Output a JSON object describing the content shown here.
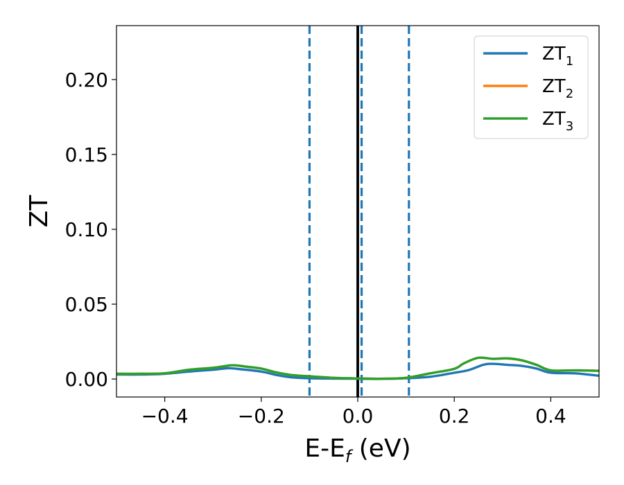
{
  "chart_data": {
    "type": "line",
    "xlabel": {
      "main": "E-E",
      "sub": "f",
      "suffix": " (eV)"
    },
    "ylabel": "ZT",
    "xlim": [
      -0.5,
      0.5
    ],
    "ylim": [
      -0.012,
      0.236
    ],
    "grid": false,
    "legend_position": "top-right",
    "x_ticks": [
      {
        "value": -0.4,
        "label": "−0.4"
      },
      {
        "value": -0.2,
        "label": "−0.2"
      },
      {
        "value": 0.0,
        "label": "0.0"
      },
      {
        "value": 0.2,
        "label": "0.2"
      },
      {
        "value": 0.4,
        "label": "0.4"
      }
    ],
    "y_ticks": [
      {
        "value": 0.0,
        "label": "0.00"
      },
      {
        "value": 0.05,
        "label": "0.05"
      },
      {
        "value": 0.1,
        "label": "0.10"
      },
      {
        "value": 0.15,
        "label": "0.15"
      },
      {
        "value": 0.2,
        "label": "0.20"
      }
    ],
    "vertical_lines": [
      {
        "x": 0.0,
        "style": "solid",
        "color": "#000000"
      },
      {
        "x": -0.1,
        "style": "dashed",
        "color": "#1f77b4"
      },
      {
        "x": 0.008,
        "style": "dashed",
        "color": "#1f77b4"
      },
      {
        "x": 0.106,
        "style": "dashed",
        "color": "#1f77b4"
      }
    ],
    "series": [
      {
        "name": "ZT",
        "sub": "1",
        "color": "#1f77b4",
        "points": [
          [
            -0.5,
            0.003
          ],
          [
            -0.45,
            0.003
          ],
          [
            -0.4,
            0.0035
          ],
          [
            -0.35,
            0.005
          ],
          [
            -0.3,
            0.0062
          ],
          [
            -0.27,
            0.0072
          ],
          [
            -0.25,
            0.0068
          ],
          [
            -0.2,
            0.005
          ],
          [
            -0.17,
            0.0028
          ],
          [
            -0.14,
            0.0012
          ],
          [
            -0.1,
            0.0005
          ],
          [
            -0.05,
            0.0003
          ],
          [
            0.0,
            0.0002
          ],
          [
            0.05,
            0.0001
          ],
          [
            0.1,
            0.0005
          ],
          [
            0.15,
            0.0015
          ],
          [
            0.2,
            0.0042
          ],
          [
            0.23,
            0.006
          ],
          [
            0.26,
            0.0095
          ],
          [
            0.28,
            0.0102
          ],
          [
            0.31,
            0.0095
          ],
          [
            0.34,
            0.0088
          ],
          [
            0.37,
            0.007
          ],
          [
            0.4,
            0.0042
          ],
          [
            0.45,
            0.0038
          ],
          [
            0.5,
            0.0022
          ]
        ]
      },
      {
        "name": "ZT",
        "sub": "2",
        "color": "#ff7f0e",
        "points": [
          [
            -0.5,
            0.0035
          ],
          [
            -0.45,
            0.0035
          ],
          [
            -0.4,
            0.0038
          ],
          [
            -0.35,
            0.0062
          ],
          [
            -0.3,
            0.0075
          ],
          [
            -0.26,
            0.0092
          ],
          [
            -0.23,
            0.0082
          ],
          [
            -0.2,
            0.007
          ],
          [
            -0.17,
            0.0045
          ],
          [
            -0.14,
            0.0028
          ],
          [
            -0.1,
            0.0018
          ],
          [
            -0.05,
            0.0008
          ],
          [
            0.0,
            0.0004
          ],
          [
            0.05,
            0.0002
          ],
          [
            0.1,
            0.0008
          ],
          [
            0.15,
            0.0038
          ],
          [
            0.2,
            0.0068
          ],
          [
            0.22,
            0.0105
          ],
          [
            0.25,
            0.0142
          ],
          [
            0.28,
            0.0135
          ],
          [
            0.31,
            0.0138
          ],
          [
            0.34,
            0.0125
          ],
          [
            0.37,
            0.0095
          ],
          [
            0.4,
            0.0058
          ],
          [
            0.45,
            0.0058
          ],
          [
            0.5,
            0.0055
          ]
        ]
      },
      {
        "name": "ZT",
        "sub": "3",
        "color": "#2ca02c",
        "points": [
          [
            -0.5,
            0.0035
          ],
          [
            -0.45,
            0.0035
          ],
          [
            -0.4,
            0.0038
          ],
          [
            -0.35,
            0.0062
          ],
          [
            -0.3,
            0.0075
          ],
          [
            -0.26,
            0.0092
          ],
          [
            -0.23,
            0.0082
          ],
          [
            -0.2,
            0.007
          ],
          [
            -0.17,
            0.0045
          ],
          [
            -0.14,
            0.0028
          ],
          [
            -0.1,
            0.0018
          ],
          [
            -0.05,
            0.0008
          ],
          [
            0.0,
            0.0004
          ],
          [
            0.05,
            0.0002
          ],
          [
            0.1,
            0.0008
          ],
          [
            0.15,
            0.0038
          ],
          [
            0.2,
            0.0068
          ],
          [
            0.22,
            0.0105
          ],
          [
            0.25,
            0.0142
          ],
          [
            0.28,
            0.0135
          ],
          [
            0.31,
            0.0138
          ],
          [
            0.34,
            0.0125
          ],
          [
            0.37,
            0.0095
          ],
          [
            0.4,
            0.0058
          ],
          [
            0.45,
            0.0058
          ],
          [
            0.5,
            0.0055
          ]
        ]
      }
    ]
  }
}
